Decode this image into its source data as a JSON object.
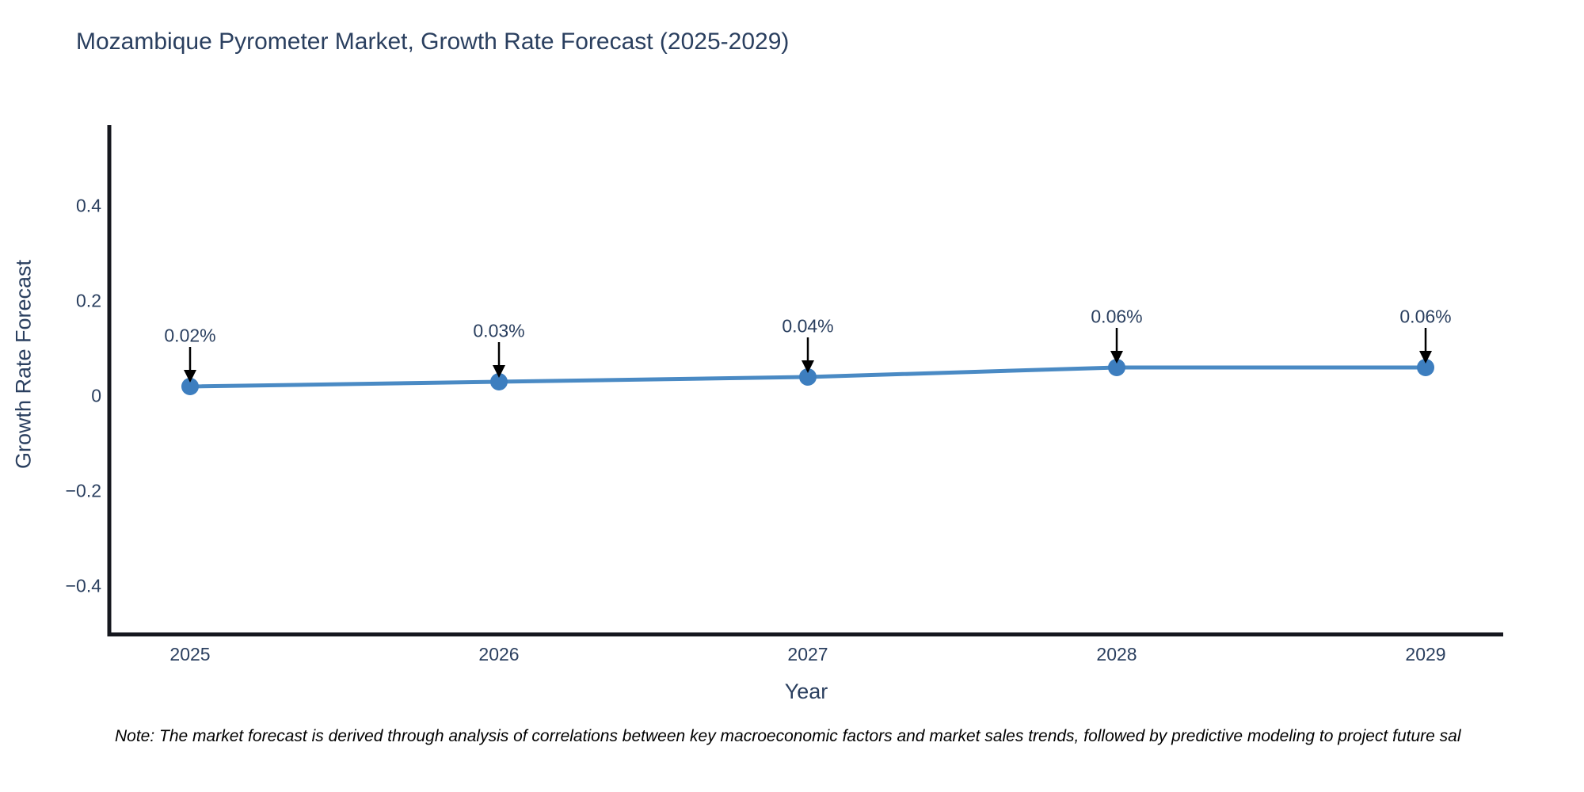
{
  "page": {
    "background": "#ffffff"
  },
  "title": {
    "text": "Mozambique Pyrometer Market, Growth Rate Forecast (2025-2029)",
    "color": "#2a3f5f"
  },
  "note": {
    "text": "Note: The market forecast is derived through analysis of correlations between key macroeconomic factors and market sales trends, followed by predictive modeling to project future sal"
  },
  "chart_data": {
    "type": "line",
    "title": "Mozambique Pyrometer Market, Growth Rate Forecast (2025-2029)",
    "xlabel": "Year",
    "ylabel": "Growth Rate Forecast",
    "x": [
      2025,
      2026,
      2027,
      2028,
      2029
    ],
    "x_labels": [
      "2025",
      "2026",
      "2027",
      "2028",
      "2029"
    ],
    "values": [
      0.02,
      0.03,
      0.04,
      0.06,
      0.06
    ],
    "point_labels": [
      "0.02%",
      "0.03%",
      "0.04%",
      "0.06%",
      "0.06%"
    ],
    "ytick_values": [
      0.4,
      0.2,
      0,
      -0.2,
      -0.4
    ],
    "ytick_labels": [
      "0.4",
      "0.2",
      "0",
      "−0.2",
      "−0.4"
    ],
    "ylim": [
      -0.52,
      0.57
    ],
    "grid": false,
    "legend": null,
    "line_color": "#4a8ac4",
    "marker_color": "#3d7ebf",
    "axis_color": "#15171e",
    "label_color": "#2a3f5f",
    "arrow_color": "#000000"
  }
}
